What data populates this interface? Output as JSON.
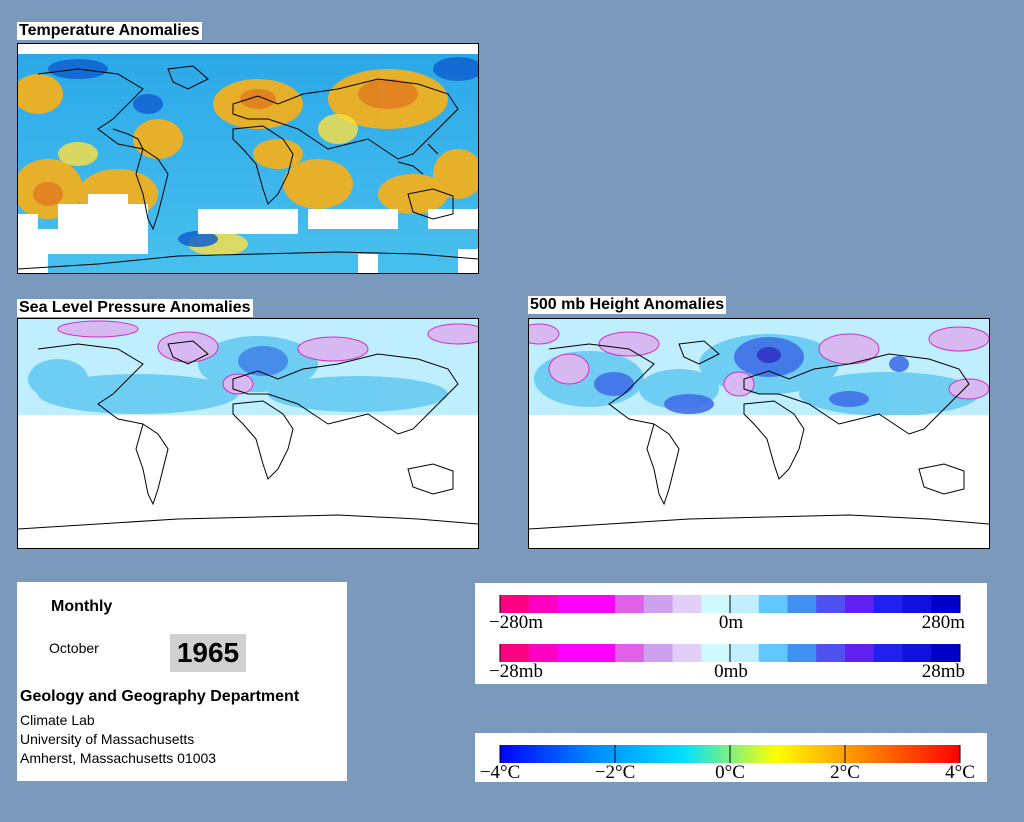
{
  "maps": {
    "temperature": {
      "title": "Temperature Anomalies"
    },
    "slp": {
      "title": "Sea Level Pressure Anomalies"
    },
    "height500": {
      "title": "500 mb Height Anomalies"
    }
  },
  "info": {
    "period": "Monthly",
    "month": "October",
    "year": "1965",
    "department": "Geology and Geography Department",
    "lab": "Climate Lab",
    "university": "University of Massachusetts",
    "address": "Amherst, Massachusetts 01003"
  },
  "legends": {
    "height_scale": {
      "labels": [
        "−280m",
        "0m",
        "280m"
      ],
      "colors": [
        "#ff0080",
        "#ff00c0",
        "#ff00ff",
        "#ff00ff",
        "#e060e8",
        "#d0a0f0",
        "#e0d0f8",
        "#d0f8ff",
        "#c0f0ff",
        "#60c8ff",
        "#4090f0",
        "#5050f0",
        "#6020f0",
        "#2020f0",
        "#1010e0",
        "#0000c8"
      ]
    },
    "pressure_scale": {
      "labels": [
        "−28mb",
        "0mb",
        "28mb"
      ],
      "colors": [
        "#ff0080",
        "#ff00c0",
        "#ff00ff",
        "#ff00ff",
        "#e060e8",
        "#d0a0f0",
        "#e0d0f8",
        "#d0f8ff",
        "#c0f0ff",
        "#60c8ff",
        "#4090f0",
        "#5050f0",
        "#6020f0",
        "#2020f0",
        "#1010e0",
        "#0000c8"
      ]
    },
    "temperature_scale": {
      "labels": [
        "−4°C",
        "−2°C",
        "0°C",
        "2°C",
        "4°C"
      ],
      "colors": [
        "#0000ff",
        "#0088ff",
        "#00e0ff",
        "#ffff00",
        "#ff8000",
        "#ff0000"
      ]
    }
  }
}
